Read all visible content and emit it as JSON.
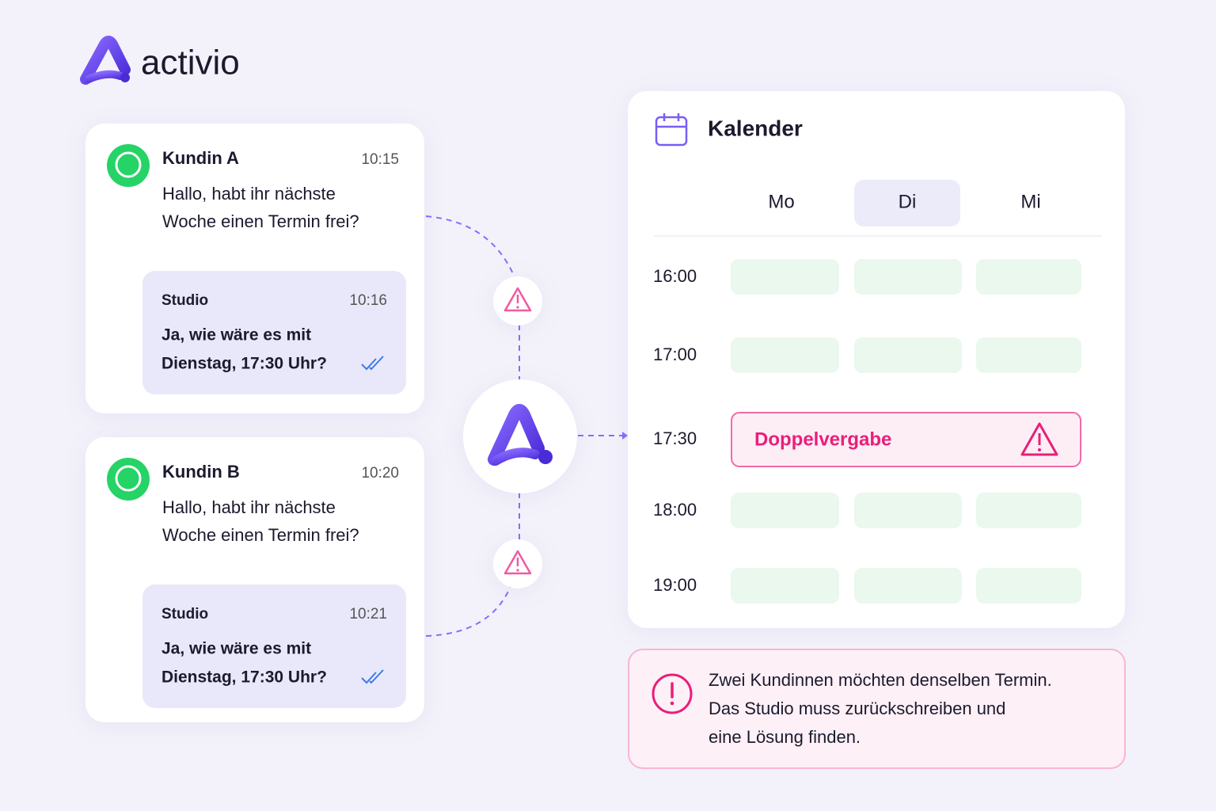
{
  "brand": "activio",
  "chats": [
    {
      "name": "Kundin A",
      "time": "10:15",
      "text": [
        "Hallo, habt ihr nächste",
        "Woche einen Termin frei?"
      ],
      "reply": {
        "name": "Studio",
        "time": "10:16",
        "text": [
          "Ja, wie wäre es mit",
          "Dienstag, 17:30 Uhr?"
        ]
      }
    },
    {
      "name": "Kundin B",
      "time": "10:20",
      "text": [
        "Hallo, habt ihr nächste",
        "Woche einen Termin frei?"
      ],
      "reply": {
        "name": "Studio",
        "time": "10:21",
        "text": [
          "Ja, wie wäre es mit",
          "Dienstag, 17:30 Uhr?"
        ]
      }
    }
  ],
  "calendar": {
    "title": "Kalender",
    "days": [
      "Mo",
      "Di",
      "Mi"
    ],
    "times": [
      "16:00",
      "17:00",
      "17:30",
      "18:00",
      "19:00"
    ],
    "conflict": "Doppelvergabe"
  },
  "notice": [
    "Zwei Kundinnen möchten denselben Termin.",
    "Das Studio muss zurückschreiben und",
    "eine Lösung finden."
  ]
}
